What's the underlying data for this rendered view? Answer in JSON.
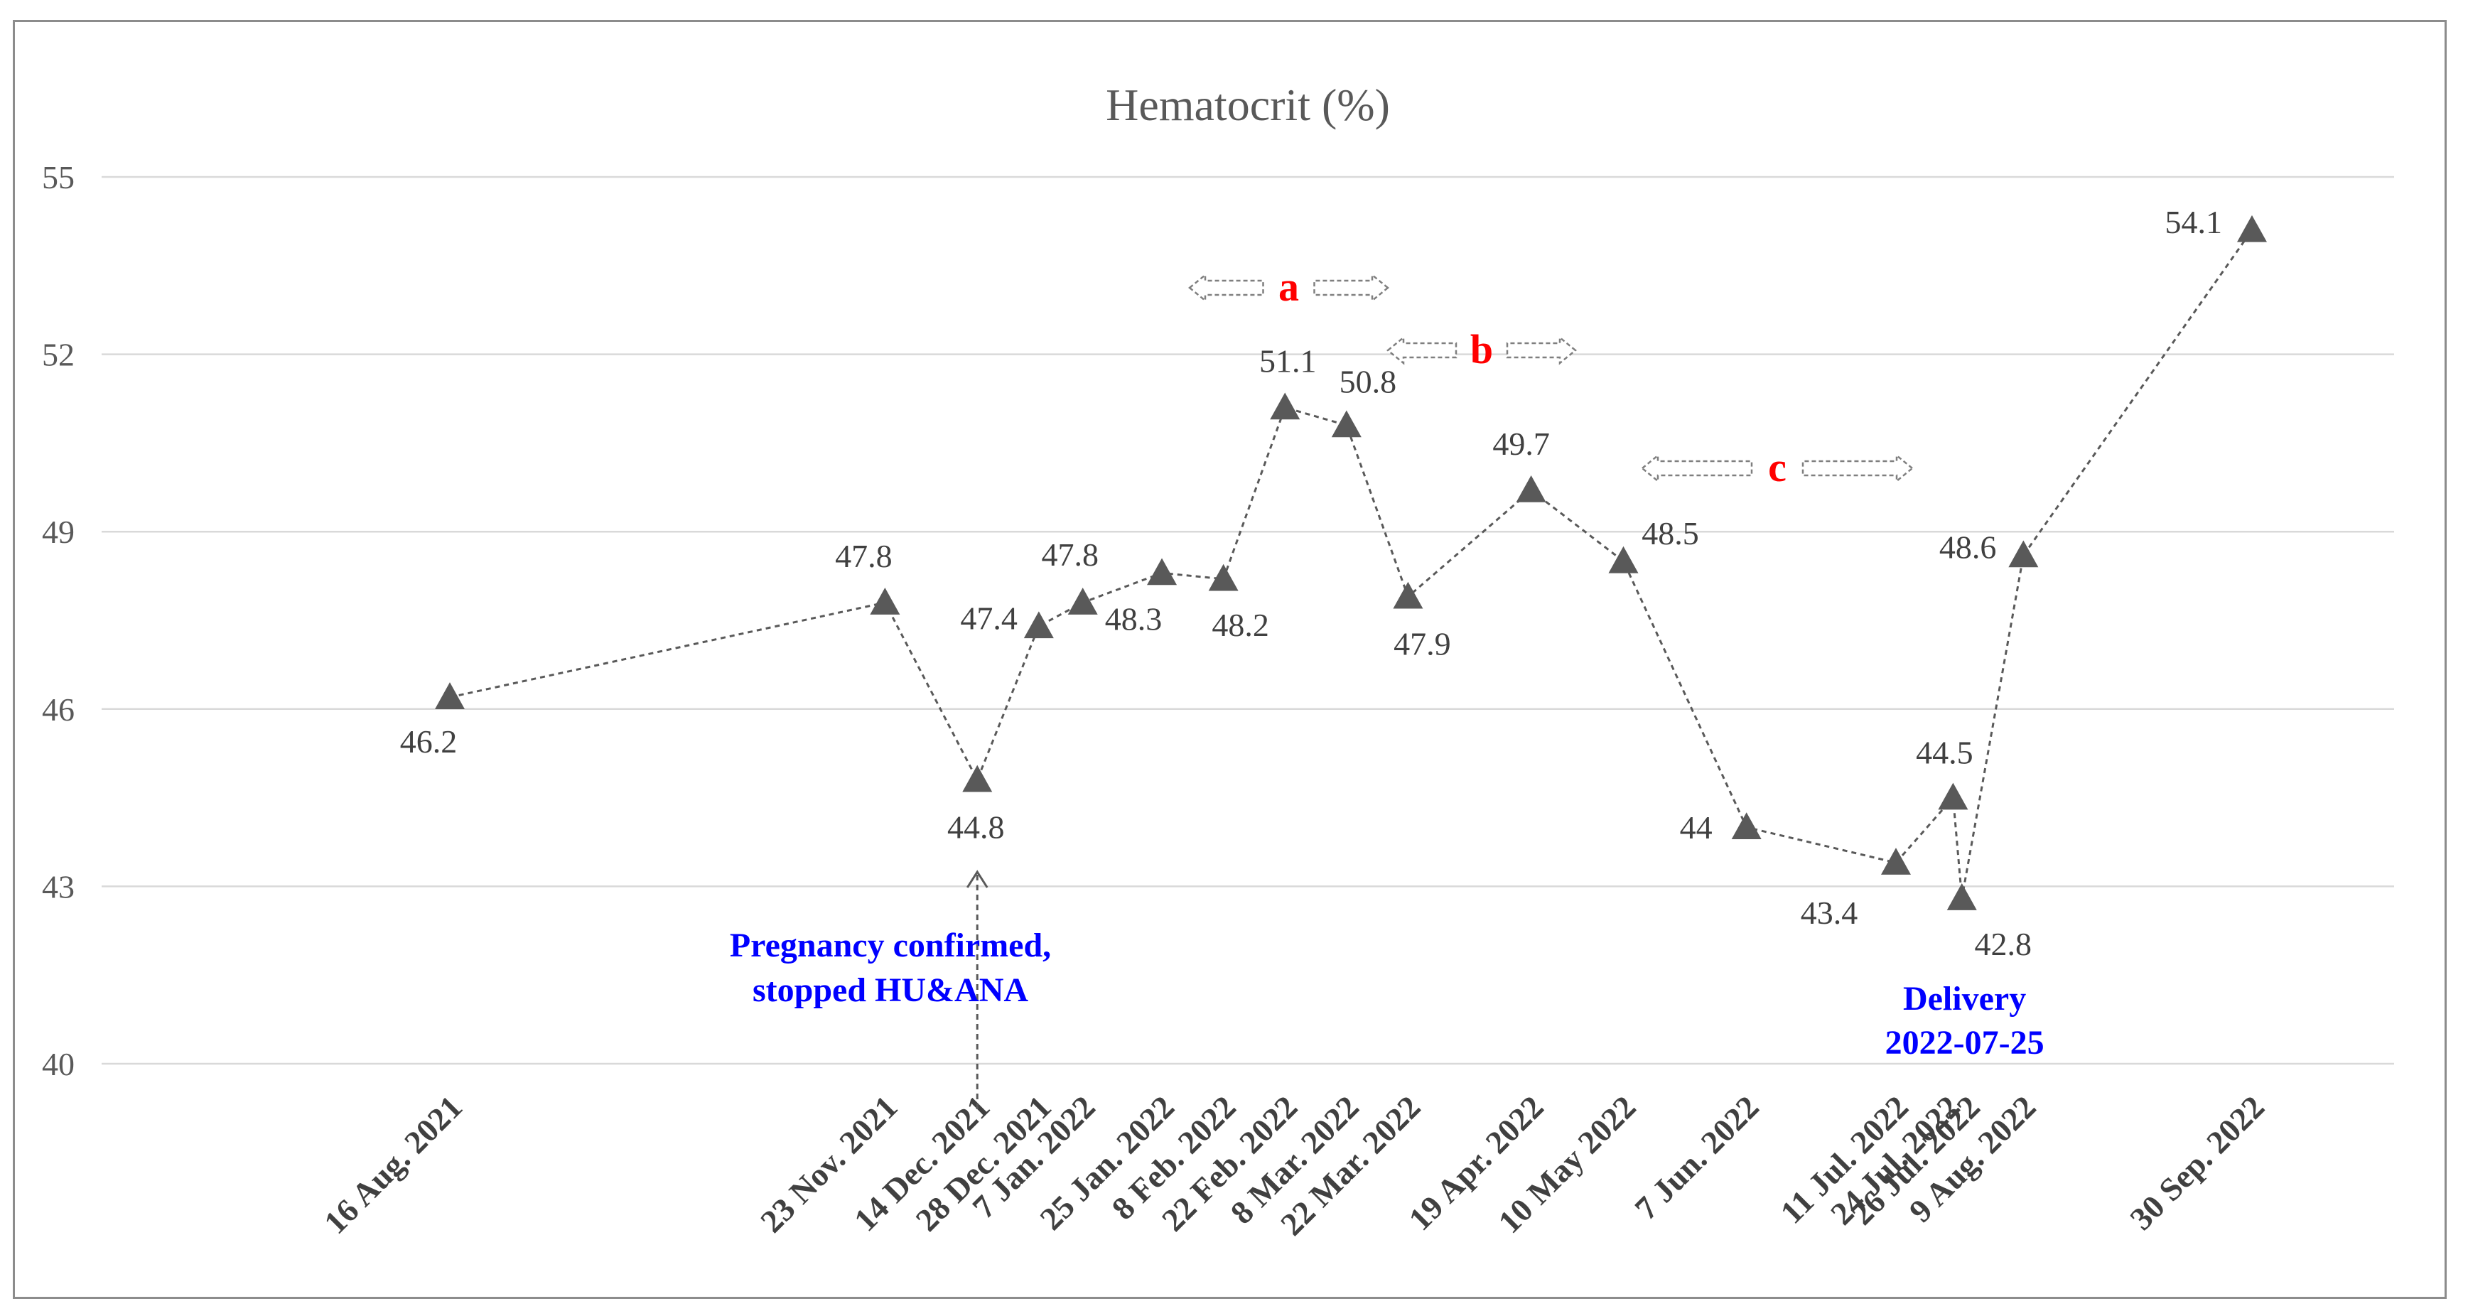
{
  "chart_data": {
    "type": "line",
    "title": "Hematocrit (%)",
    "xlabel": "",
    "ylabel": "",
    "ylim": [
      40,
      55
    ],
    "yticks": [
      "40",
      "43",
      "46",
      "49",
      "52",
      "55"
    ],
    "grid": true,
    "series": [
      {
        "name": "Hematocrit (%)",
        "marker": "triangle",
        "color": "#595959",
        "points": [
          {
            "date": "16 Aug. 2021",
            "value": 46.2,
            "label": "46.2"
          },
          {
            "date": "23 Nov. 2021",
            "value": 47.8,
            "label": "47.8"
          },
          {
            "date": "14 Dec. 2021",
            "value": 44.8,
            "label": "44.8"
          },
          {
            "date": "28 Dec. 2021",
            "value": 47.4,
            "label": "47.4"
          },
          {
            "date": "7 Jan. 2022",
            "value": 47.8,
            "label": "47.8"
          },
          {
            "date": "25 Jan. 2022",
            "value": 48.3,
            "label": "48.3"
          },
          {
            "date": "8 Feb. 2022",
            "value": 48.2,
            "label": "48.2"
          },
          {
            "date": "22 Feb. 2022",
            "value": 51.1,
            "label": "51.1"
          },
          {
            "date": "8 Mar. 2022",
            "value": 50.8,
            "label": "50.8"
          },
          {
            "date": "22 Mar. 2022",
            "value": 47.9,
            "label": "47.9"
          },
          {
            "date": "19 Apr. 2022",
            "value": 49.7,
            "label": "49.7"
          },
          {
            "date": "10 May 2022",
            "value": 48.5,
            "label": "48.5"
          },
          {
            "date": "7 Jun. 2022",
            "value": 44.0,
            "label": "44"
          },
          {
            "date": "11 Jul. 2022",
            "value": 43.4,
            "label": "43.4"
          },
          {
            "date": "24 Jul. 2022",
            "value": 44.5,
            "label": "44.5"
          },
          {
            "date": "26 Jul. 2022",
            "value": 42.8,
            "label": "42.8"
          },
          {
            "date": "9 Aug. 2022",
            "value": 48.6,
            "label": "48.6"
          },
          {
            "date": "30 Sep. 2022",
            "value": 54.1,
            "label": "54.1"
          }
        ]
      }
    ],
    "annotations": {
      "pregnancy": {
        "line1": "Pregnancy confirmed,",
        "line2": "stopped HU&ANA",
        "date": "14 Dec. 2021"
      },
      "delivery": {
        "line1": "Delivery",
        "line2": "2022-07-25",
        "date": "25 Jul. 2022"
      },
      "periods": [
        {
          "letter": "a",
          "from": "8 Feb. 2022",
          "to": "22 Mar. 2022"
        },
        {
          "letter": "b",
          "from": "22 Mar. 2022",
          "to": "19 Apr. 2022"
        },
        {
          "letter": "c",
          "from": "10 May 2022",
          "to": "11 Jul. 2022"
        }
      ]
    },
    "colors": {
      "marker": "#595959",
      "text": "#404040",
      "grid": "#d9d9d9",
      "annotation": "#0000ff",
      "period_letter": "#ff0000",
      "period_arrow": "#7f7f7f"
    }
  }
}
